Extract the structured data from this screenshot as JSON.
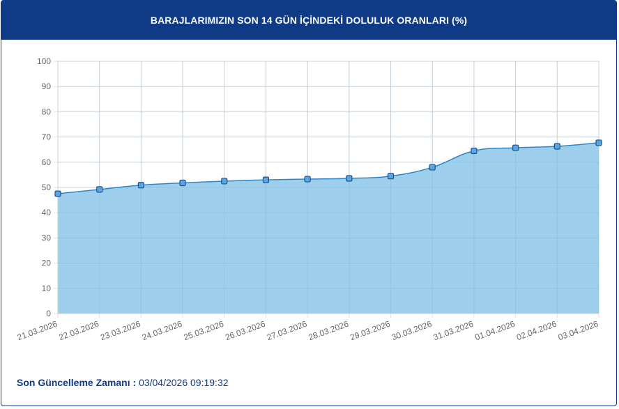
{
  "header": {
    "title": "BARAJLARIMIZIN SON 14 GÜN İÇİNDEKİ DOLULUK ORANLARI (%)"
  },
  "footer": {
    "label": "Son Güncelleme Zamanı",
    "separator": ":",
    "value": "03/04/2026 09:19:32"
  },
  "colors": {
    "header_bg": "#0e3a86",
    "area_fill": "#9dcfec",
    "line": "#2f86c6",
    "point_fill": "#5aa6e0",
    "point_stroke": "#1f4f8f",
    "grid": "#e2e2e2"
  },
  "chart_data": {
    "type": "area",
    "title": "",
    "xlabel": "",
    "ylabel": "",
    "ylim": [
      0,
      100
    ],
    "yticks": [
      0,
      10,
      20,
      30,
      40,
      50,
      60,
      70,
      80,
      90,
      100
    ],
    "grid": true,
    "legend": "none",
    "categories": [
      "21.03.2026",
      "22.03.2026",
      "23.03.2026",
      "24.03.2026",
      "25.03.2026",
      "26.03.2026",
      "27.03.2026",
      "28.03.2026",
      "29.03.2026",
      "30.03.2026",
      "31.03.2026",
      "01.04.2026",
      "02.04.2026",
      "03.04.2026"
    ],
    "values": [
      47.5,
      49.2,
      50.9,
      51.8,
      52.5,
      53.0,
      53.3,
      53.6,
      54.5,
      58.0,
      64.5,
      65.7,
      66.3,
      67.7
    ]
  }
}
